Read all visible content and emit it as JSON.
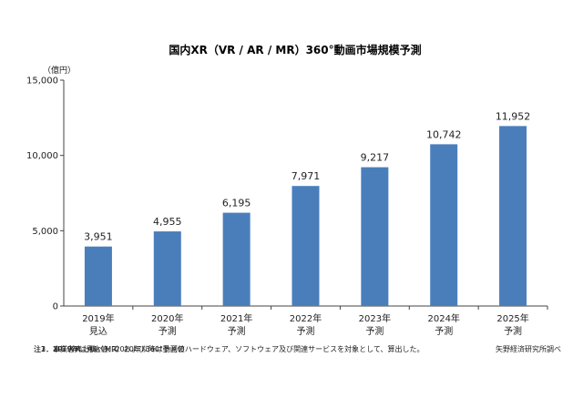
{
  "chart_data": {
    "type": "bar",
    "title": "国内XR（VR / AR / MR）360°動画市場規模予測",
    "ylabel": "（億円）",
    "ylim": [
      0,
      15000
    ],
    "yticks": [
      "15,000",
      "10,000",
      "5,000",
      "0"
    ],
    "ytick_values": [
      15000,
      10000,
      5000,
      0
    ],
    "categories": [
      "2019年",
      "2020年",
      "2021年",
      "2022年",
      "2023年",
      "2024年",
      "2025年"
    ],
    "sublabels": [
      "見込",
      "予測",
      "予測",
      "予測",
      "予測",
      "予測",
      "予測"
    ],
    "values": [
      3951,
      4955,
      6195,
      7971,
      9217,
      10742,
      11952
    ],
    "value_labels": [
      "3,951",
      "4,955",
      "6,195",
      "7,971",
      "9,217",
      "10,742",
      "11,952"
    ],
    "bar_color": "#4a7ebb",
    "grid": false
  },
  "notes": [
    "注1．事業者売上高ベース",
    "注2．2019年は見込値、2020年以降は予測値",
    "注3．XR（VR、AR、MR）および360°動画のハードウェア、ソフトウェア及び関連サービスを対象として、算出した。"
  ],
  "source": "矢野経済研究所調べ"
}
